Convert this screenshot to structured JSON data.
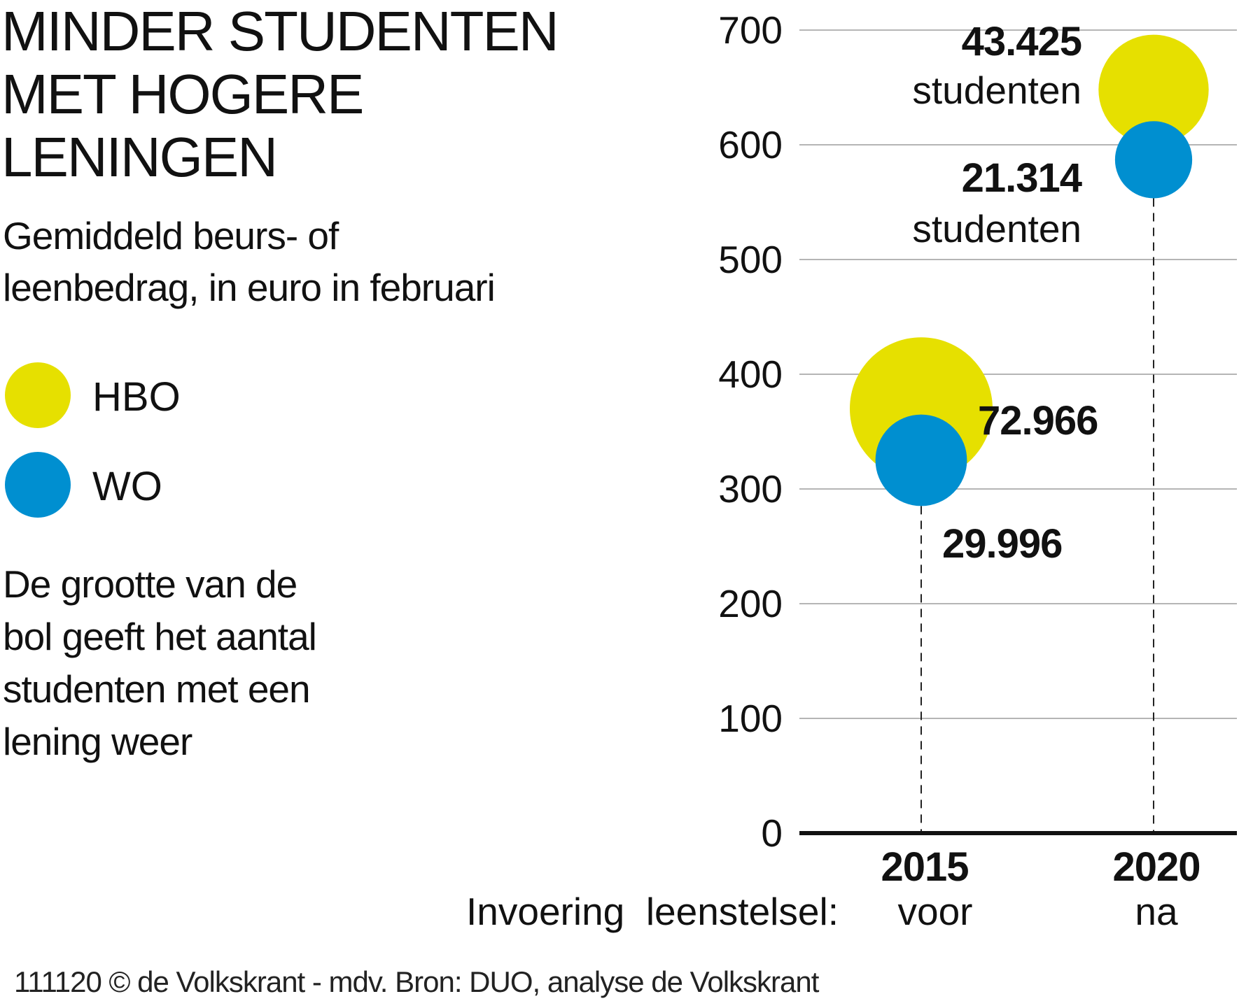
{
  "title": [
    "MINDER STUDENTEN",
    "MET HOGERE",
    "LENINGEN"
  ],
  "subtitle": [
    "Gemiddeld beurs- of",
    "leenbedrag, in euro in februari"
  ],
  "legend": [
    {
      "label": "HBO",
      "color": "#e6e000"
    },
    {
      "label": "WO",
      "color": "#008fd0"
    }
  ],
  "note": [
    "De grootte van de",
    "bol geeft het aantal",
    "studenten met een",
    "lening weer"
  ],
  "footer": "111120 © de Volkskrant - mdv. Bron: DUO, analyse de Volkskrant",
  "chart_data": {
    "type": "scatter",
    "subtype": "bubble",
    "title": "MINDER STUDENTEN MET HOGERE LENINGEN",
    "ylim": [
      0,
      700
    ],
    "yticks": [
      0,
      100,
      200,
      300,
      400,
      500,
      600,
      700
    ],
    "grid": true,
    "categories": [
      "2015",
      "2020"
    ],
    "category_sublabels": [
      "voor",
      "na"
    ],
    "xlabel": "Invoering  leenstelsel:",
    "series": [
      {
        "name": "HBO",
        "color": "#e6e000",
        "values": [
          370,
          648
        ],
        "sizes": [
          72966,
          43425
        ]
      },
      {
        "name": "WO",
        "color": "#008fd0",
        "values": [
          325,
          587
        ],
        "sizes": [
          29996,
          21314
        ]
      }
    ],
    "annotations": {
      "hbo_2015": "72.966",
      "wo_2015": "29.996",
      "hbo_2020": "43.425",
      "hbo_2020_unit": "studenten",
      "wo_2020": "21.314",
      "wo_2020_unit": "studenten"
    }
  }
}
